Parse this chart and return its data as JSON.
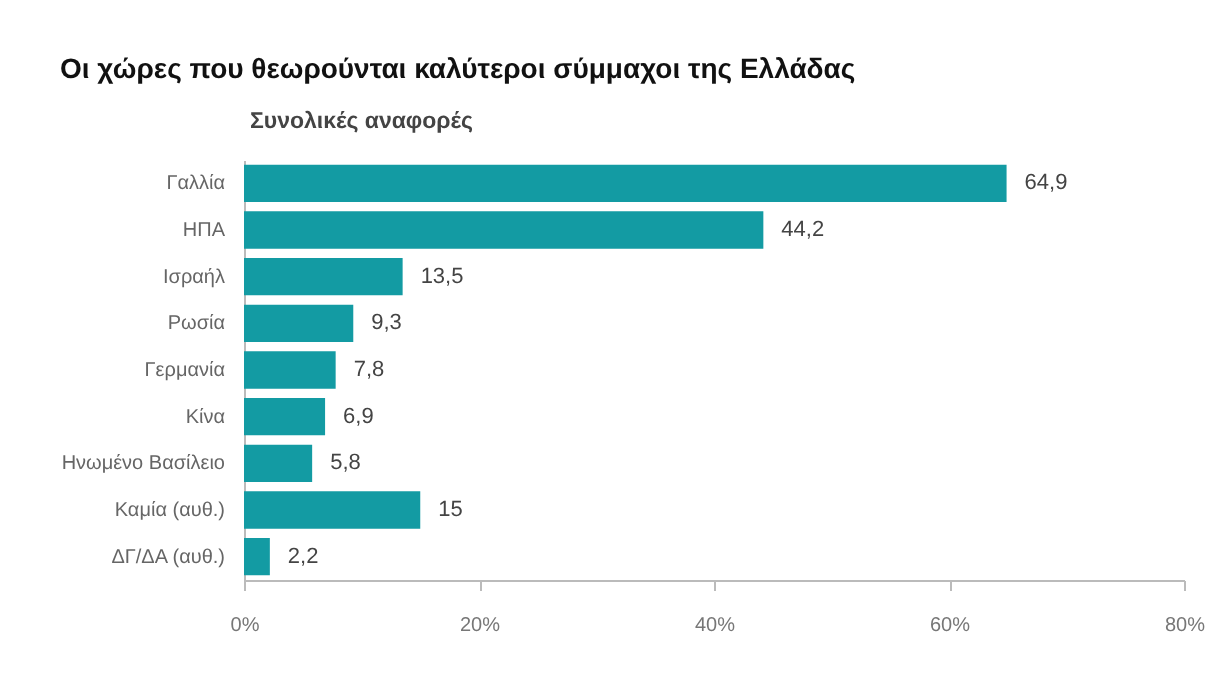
{
  "chart_data": {
    "type": "bar",
    "orientation": "horizontal",
    "title": "Οι χώρες που θεωρούνται καλύτεροι σύμμαχοι της Ελλάδας",
    "subtitle": "Συνολικές αναφορές",
    "categories": [
      "Γαλλία",
      "ΗΠΑ",
      "Ισραήλ",
      "Ρωσία",
      "Γερμανία",
      "Κίνα",
      "Ηνωμένο Βασίλειο",
      "Καμία (αυθ.)",
      "ΔΓ/ΔΑ (αυθ.)"
    ],
    "values": [
      64.9,
      44.2,
      13.5,
      9.3,
      7.8,
      6.9,
      5.8,
      15,
      2.2
    ],
    "value_labels": [
      "64,9",
      "44,2",
      "13,5",
      "9,3",
      "7,8",
      "6,9",
      "5,8",
      "15",
      "2,2"
    ],
    "color": "#139ba3",
    "xlim": [
      0,
      80
    ],
    "xticks": [
      {
        "value": 0,
        "label": "0%"
      },
      {
        "value": 20,
        "label": "20%"
      },
      {
        "value": 40,
        "label": "40%"
      },
      {
        "value": 60,
        "label": "60%"
      },
      {
        "value": 80,
        "label": "80%"
      }
    ],
    "grid": false
  }
}
